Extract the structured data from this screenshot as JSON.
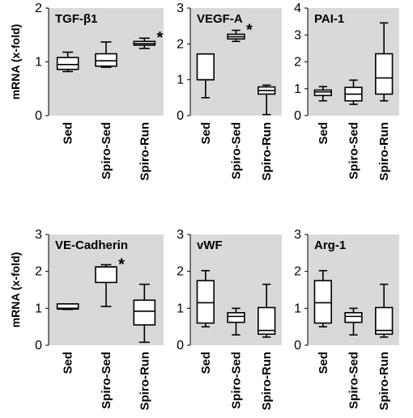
{
  "chart_data": [
    {
      "type": "box",
      "title": "TGF-β1",
      "ylabel": "mRNA (x-fold)",
      "ylim": [
        0,
        2
      ],
      "yticks": [
        0,
        1,
        2
      ],
      "categories": [
        "Sed",
        "Spiro-Sed",
        "Spiro-Run"
      ],
      "boxes": [
        {
          "min": 0.82,
          "q1": 0.86,
          "median": 0.95,
          "q3": 1.08,
          "max": 1.18
        },
        {
          "min": 0.9,
          "q1": 0.92,
          "median": 1.02,
          "q3": 1.15,
          "max": 1.37
        },
        {
          "min": 1.25,
          "q1": 1.31,
          "median": 1.34,
          "q3": 1.38,
          "max": 1.44
        }
      ],
      "annotations": [
        {
          "category": "Spiro-Run",
          "text": "*"
        }
      ]
    },
    {
      "type": "box",
      "title": "VEGF-A",
      "ylabel": "",
      "ylim": [
        0,
        3
      ],
      "yticks": [
        0,
        1,
        2,
        3
      ],
      "categories": [
        "Sed",
        "Spiro-Sed",
        "Spiro-Run"
      ],
      "boxes": [
        {
          "min": 0.5,
          "q1": 1.0,
          "median": 1.0,
          "q3": 1.72,
          "max": 1.72
        },
        {
          "min": 2.07,
          "q1": 2.14,
          "median": 2.2,
          "q3": 2.27,
          "max": 2.38
        },
        {
          "min": 0.03,
          "q1": 0.6,
          "median": 0.7,
          "q3": 0.8,
          "max": 0.85
        }
      ],
      "annotations": [
        {
          "category": "Spiro-Sed",
          "text": "*"
        }
      ]
    },
    {
      "type": "box",
      "title": "PAI-1",
      "ylabel": "",
      "ylim": [
        0,
        4
      ],
      "yticks": [
        0,
        1,
        2,
        3,
        4
      ],
      "categories": [
        "Sed",
        "Spiro-Sed",
        "Spiro-Run"
      ],
      "boxes": [
        {
          "min": 0.55,
          "q1": 0.75,
          "median": 0.88,
          "q3": 0.95,
          "max": 1.08
        },
        {
          "min": 0.42,
          "q1": 0.55,
          "median": 0.8,
          "q3": 1.05,
          "max": 1.32
        },
        {
          "min": 0.55,
          "q1": 0.8,
          "median": 1.4,
          "q3": 2.3,
          "max": 3.45
        }
      ],
      "annotations": []
    },
    {
      "type": "box",
      "title": "VE-Cadherin",
      "ylabel": "mRNA (x-fold)",
      "ylim": [
        0,
        3
      ],
      "yticks": [
        0,
        1,
        2,
        3
      ],
      "categories": [
        "Sed",
        "Spiro-Sed",
        "Spiro-Run"
      ],
      "boxes": [
        {
          "min": 0.97,
          "q1": 0.98,
          "median": 1.0,
          "q3": 1.12,
          "max": 1.12
        },
        {
          "min": 1.05,
          "q1": 1.7,
          "median": 2.12,
          "q3": 2.12,
          "max": 2.18
        },
        {
          "min": 0.08,
          "q1": 0.55,
          "median": 0.92,
          "q3": 1.22,
          "max": 1.65
        }
      ],
      "annotations": [
        {
          "category": "Spiro-Sed",
          "text": "*"
        }
      ]
    },
    {
      "type": "box",
      "title": "vWF",
      "ylabel": "",
      "ylim": [
        0,
        3
      ],
      "yticks": [
        0,
        1,
        2,
        3
      ],
      "categories": [
        "Sed",
        "Spiro-Sed",
        "Spiro-Run"
      ],
      "boxes": [
        {
          "min": 0.5,
          "q1": 0.6,
          "median": 1.15,
          "q3": 1.75,
          "max": 2.02
        },
        {
          "min": 0.28,
          "q1": 0.62,
          "median": 0.78,
          "q3": 0.88,
          "max": 1.0
        },
        {
          "min": 0.22,
          "q1": 0.3,
          "median": 0.4,
          "q3": 1.02,
          "max": 1.65
        }
      ],
      "annotations": []
    },
    {
      "type": "box",
      "title": "Arg-1",
      "ylabel": "",
      "ylim": [
        0,
        3
      ],
      "yticks": [
        0,
        1,
        2,
        3
      ],
      "categories": [
        "Sed",
        "Spiro-Sed",
        "Spiro-Run"
      ],
      "boxes": [
        {
          "min": 0.5,
          "q1": 0.6,
          "median": 1.15,
          "q3": 1.75,
          "max": 2.02
        },
        {
          "min": 0.28,
          "q1": 0.62,
          "median": 0.78,
          "q3": 0.88,
          "max": 1.0
        },
        {
          "min": 0.22,
          "q1": 0.3,
          "median": 0.4,
          "q3": 1.02,
          "max": 1.65
        }
      ],
      "annotations": []
    }
  ]
}
